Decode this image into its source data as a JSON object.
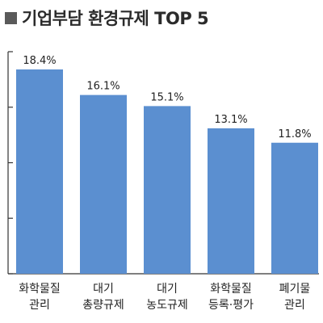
{
  "title": "기업부담 환경규제 TOP 5",
  "colors": {
    "bar": "#5b8fd0",
    "axis": "#333333",
    "title_square": "#5a5a5a"
  },
  "chart_data": {
    "type": "bar",
    "title": "기업부담 환경규제 TOP 5",
    "categories": [
      "화학물질\n관리",
      "대기\n총량규제",
      "대기\n농도규제",
      "화학물질\n등록·평가",
      "폐기물\n관리"
    ],
    "values": [
      18.4,
      16.1,
      15.1,
      13.1,
      11.8
    ],
    "value_labels": [
      "18.4%",
      "16.1%",
      "15.1%",
      "13.1%",
      "11.8%"
    ],
    "ylim": [
      0,
      20
    ],
    "y_ticks": [
      0,
      5,
      10,
      15,
      20
    ],
    "y_tick_labels_shown": false,
    "grid": false,
    "xlabel": "",
    "ylabel": ""
  }
}
